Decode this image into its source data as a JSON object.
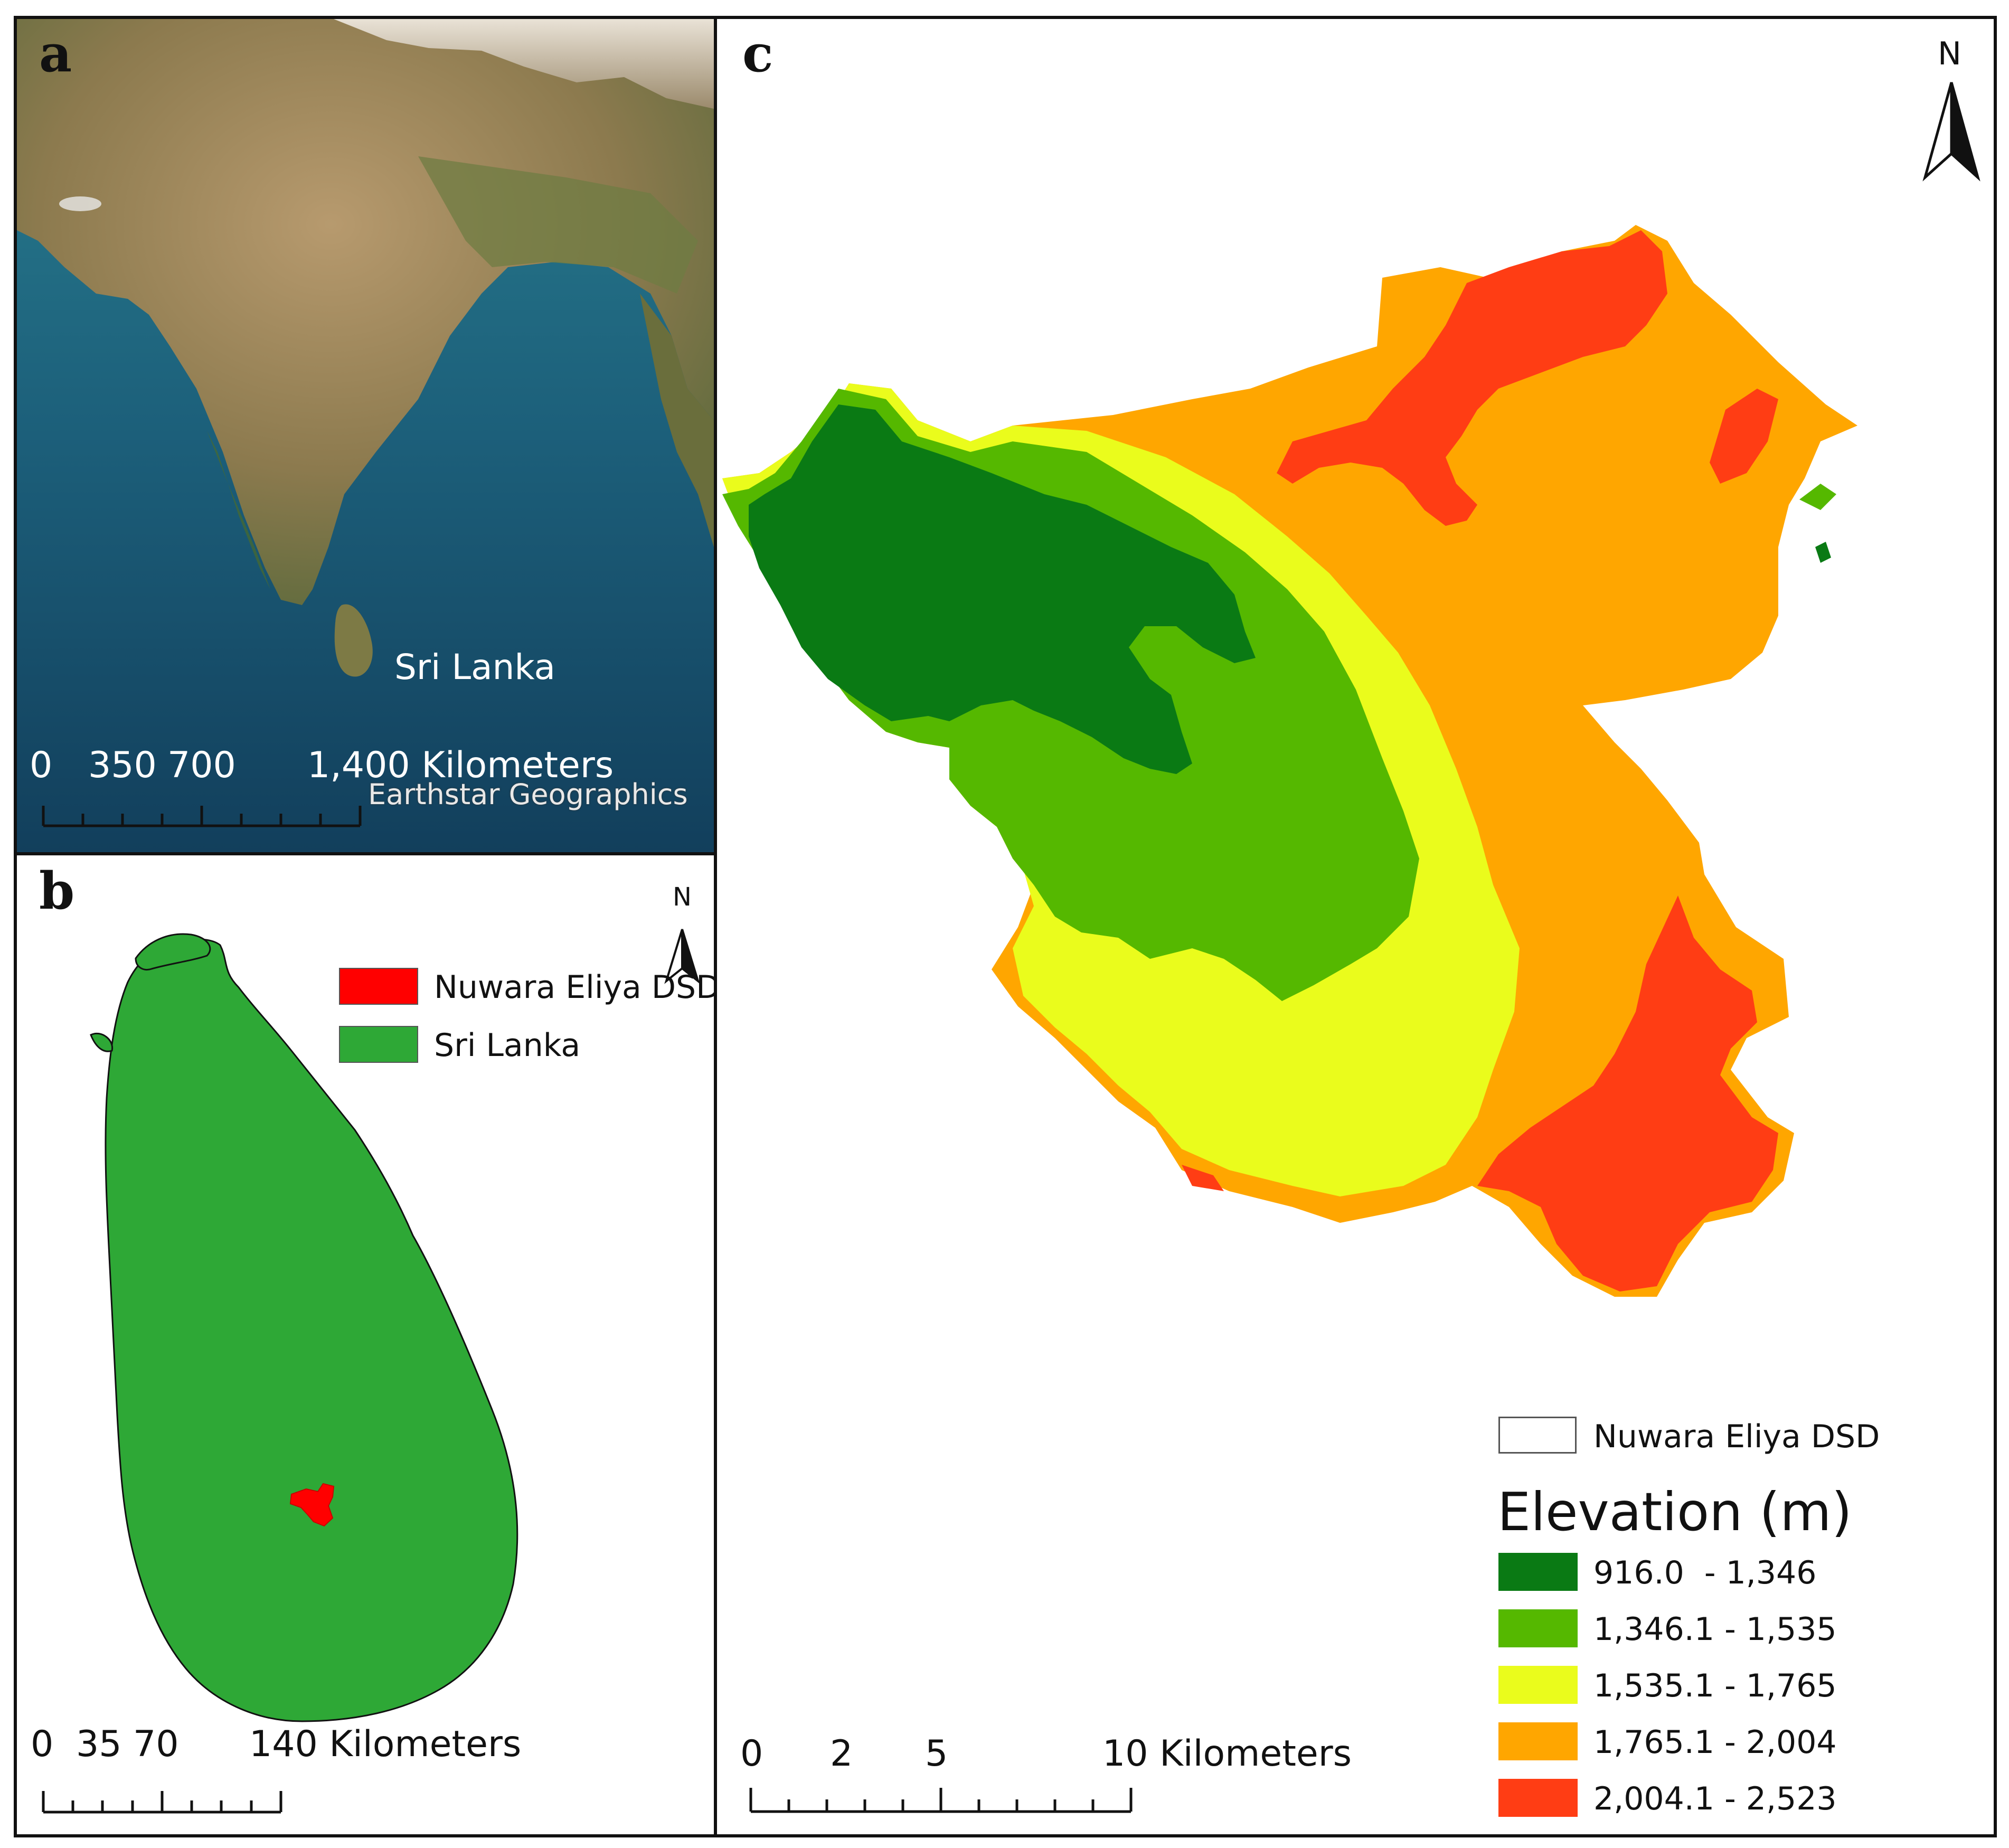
{
  "panel_a": {
    "letter": "a",
    "country_label": "Sri Lanka",
    "scale_labels": [
      "0",
      "350",
      "700",
      "1,400 Kilometers"
    ],
    "attribution": "Earthstar Geographics"
  },
  "panel_b": {
    "letter": "b",
    "north_label": "N",
    "legend": [
      {
        "label": "Nuwara Eliya DSD",
        "color": "#ff0000"
      },
      {
        "label": "Sri Lanka",
        "color": "#2ea836"
      }
    ],
    "scale_labels": [
      "0",
      "35",
      "70",
      "140 Kilometers"
    ]
  },
  "panel_c": {
    "letter": "c",
    "north_label": "N",
    "boundary_legend": {
      "label": "Nuwara Eliya DSD",
      "color": "#ffffff"
    },
    "elevation_title": "Elevation (m)",
    "elevation_classes": [
      {
        "label": "916.0  - 1,346",
        "color": "#0a7a14"
      },
      {
        "label": "1,346.1 - 1,535",
        "color": "#55b800"
      },
      {
        "label": "1,535.1 - 1,765",
        "color": "#eafc1c"
      },
      {
        "label": "1,765.1 - 2,004",
        "color": "#ffa600"
      },
      {
        "label": "2,004.1 - 2,523",
        "color": "#ff3d14"
      }
    ],
    "scale_labels": [
      "0",
      "2",
      "5",
      "10 Kilometers"
    ]
  }
}
